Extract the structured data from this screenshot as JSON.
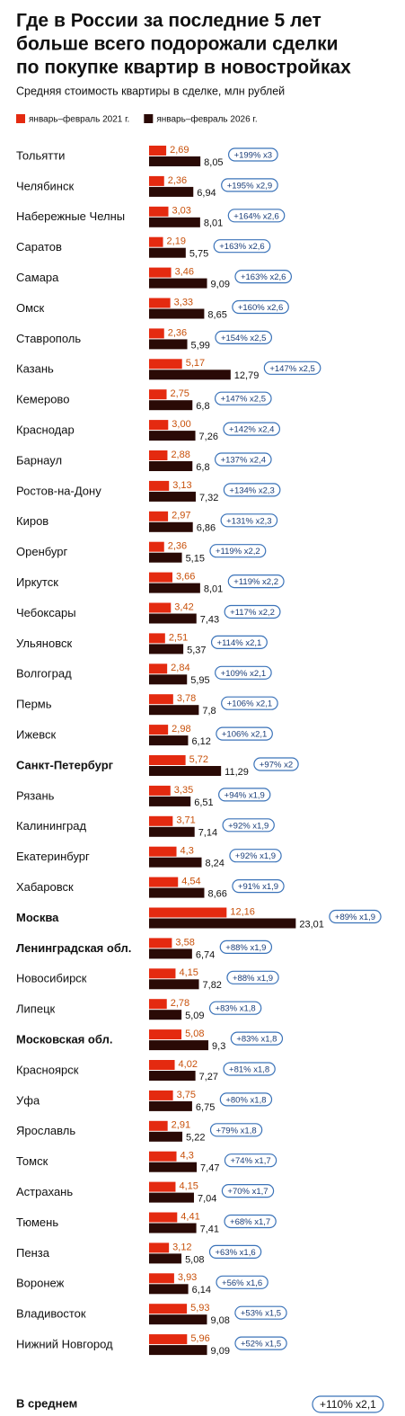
{
  "chart_data": {
    "type": "bar",
    "title": [
      "Где в России за последние 5 лет",
      "больше всего подорожали сделки",
      "по покупке квартир в новостройках"
    ],
    "subtitle": "Средняя стоимость квартиры в сделке, млн рублей",
    "categories": [
      "Тольятти",
      "Челябинск",
      "Набережные Челны",
      "Саратов",
      "Самара",
      "Омск",
      "Ставрополь",
      "Казань",
      "Кемерово",
      "Краснодар",
      "Барнаул",
      "Ростов-на-Дону",
      "Киров",
      "Оренбург",
      "Иркутск",
      "Чебоксары",
      "Ульяновск",
      "Волгоград",
      "Пермь",
      "Ижевск",
      "Санкт-Петербург",
      "Рязань",
      "Калининград",
      "Екатеринбург",
      "Хабаровск",
      "Москва",
      "Ленинградская обл.",
      "Новосибирск",
      "Липецк",
      "Московская обл.",
      "Красноярск",
      "Уфа",
      "Ярославль",
      "Томск",
      "Астрахань",
      "Тюмень",
      "Пенза",
      "Воронеж",
      "Владивосток",
      "Нижний Новгород"
    ],
    "emphasis": [
      20,
      25,
      26,
      29
    ],
    "series": [
      {
        "name": "январь–февраль 2021 г.",
        "color": "#e42a10",
        "values": [
          2.69,
          2.36,
          3.03,
          2.19,
          3.46,
          3.33,
          2.36,
          5.17,
          2.75,
          3.0,
          2.88,
          3.13,
          2.97,
          2.36,
          3.66,
          3.42,
          2.51,
          2.84,
          3.78,
          2.98,
          5.72,
          3.35,
          3.71,
          4.3,
          4.54,
          12.16,
          3.58,
          4.15,
          2.78,
          5.08,
          4.02,
          3.75,
          2.91,
          4.3,
          4.15,
          4.41,
          3.12,
          3.93,
          5.93,
          5.96
        ],
        "value_labels": [
          "2,69",
          "2,36",
          "3,03",
          "2,19",
          "3,46",
          "3,33",
          "2,36",
          "5,17",
          "2,75",
          "3,00",
          "2,88",
          "3,13",
          "2,97",
          "2,36",
          "3,66",
          "3,42",
          "2,51",
          "2,84",
          "3,78",
          "2,98",
          "5,72",
          "3,35",
          "3,71",
          "4,3",
          "4,54",
          "12,16",
          "3,58",
          "4,15",
          "2,78",
          "5,08",
          "4,02",
          "3,75",
          "2,91",
          "4,3",
          "4,15",
          "4,41",
          "3,12",
          "3,93",
          "5,93",
          "5,96"
        ]
      },
      {
        "name": "январь–февраль 2026 г.",
        "color": "#2a0a06",
        "values": [
          8.05,
          6.94,
          8.01,
          5.75,
          9.09,
          8.65,
          5.99,
          12.79,
          6.8,
          7.26,
          6.8,
          7.32,
          6.86,
          5.15,
          8.01,
          7.43,
          5.37,
          5.95,
          7.8,
          6.12,
          11.29,
          6.51,
          7.14,
          8.24,
          8.66,
          23.01,
          6.74,
          7.82,
          5.09,
          9.3,
          7.27,
          6.75,
          5.22,
          7.47,
          7.04,
          7.41,
          5.08,
          6.14,
          9.08,
          9.09
        ],
        "value_labels": [
          "8,05",
          "6,94",
          "8,01",
          "5,75",
          "9,09",
          "8,65",
          "5,99",
          "12,79",
          "6,8",
          "7,26",
          "6,8",
          "7,32",
          "6,86",
          "5,15",
          "8,01",
          "7,43",
          "5,37",
          "5,95",
          "7,8",
          "6,12",
          "11,29",
          "6,51",
          "7,14",
          "8,24",
          "8,66",
          "23,01",
          "6,74",
          "7,82",
          "5,09",
          "9,3",
          "7,27",
          "6,75",
          "5,22",
          "7,47",
          "7,04",
          "7,41",
          "5,08",
          "6,14",
          "9,08",
          "9,09"
        ]
      }
    ],
    "changes": [
      "+199% x3",
      "+195% x2,9",
      "+164% x2,6",
      "+163% x2,6",
      "+163% x2,6",
      "+160% x2,6",
      "+154% x2,5",
      "+147% x2,5",
      "+147% x2,5",
      "+142% x2,4",
      "+137% x2,4",
      "+134% x2,3",
      "+131% x2,3",
      "+119% x2,2",
      "+119% x2,2",
      "+117% x2,2",
      "+114% x2,1",
      "+109% x2,1",
      "+106% x2,1",
      "+106% x2,1",
      "+97% x2",
      "+94% x1,9",
      "+92% x1,9",
      "+92% x1,9",
      "+91% x1,9",
      "+89% x1,9",
      "+88% x1,9",
      "+88% x1,9",
      "+83% x1,8",
      "+83% x1,8",
      "+81% x1,8",
      "+80% x1,8",
      "+79% x1,8",
      "+74% x1,7",
      "+70% x1,7",
      "+68% x1,7",
      "+63% x1,6",
      "+56% x1,6",
      "+53% x1,5",
      "+52% x1,5"
    ],
    "average": {
      "label": "В среднем",
      "change": "+110% x2,1"
    }
  }
}
